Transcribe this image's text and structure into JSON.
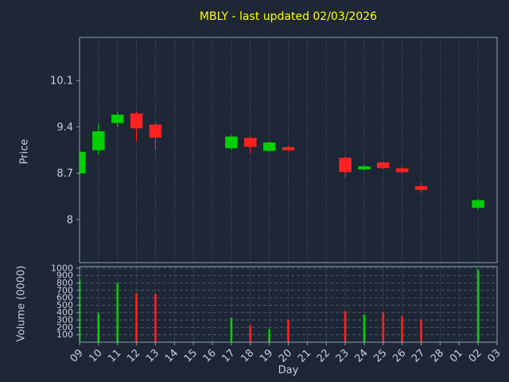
{
  "title": {
    "text": "MBLY - last updated 02/03/2026"
  },
  "axes": {
    "price_label": "Price",
    "volume_label": "Volume (0000)",
    "x_label": "Day"
  },
  "colors": {
    "background": "#1d2735",
    "up": "#00d000",
    "down": "#ff2222",
    "grid": "#8fa0b4",
    "spine": "#8fa0b4",
    "tick_text": "#c6cede",
    "title_text": "#ffff00"
  },
  "chart_data": {
    "type": "candlestick+volume",
    "title": "MBLY - last updated 02/03/2026",
    "xlabel": "Day",
    "ylabel_price": "Price",
    "ylabel_volume": "Volume (0000)",
    "x_labels": [
      "09",
      "10",
      "11",
      "12",
      "13",
      "14",
      "15",
      "16",
      "17",
      "18",
      "19",
      "20",
      "21",
      "22",
      "23",
      "24",
      "25",
      "26",
      "27",
      "28",
      "01",
      "02",
      "03"
    ],
    "price_ticks": [
      8,
      8.7,
      9.4,
      10.1
    ],
    "price_tick_labels": [
      "8",
      "8.7",
      "9.4",
      "10.1"
    ],
    "price_range": [
      7.35,
      10.75
    ],
    "volume_ticks": [
      100,
      200,
      300,
      400,
      500,
      600,
      700,
      800,
      900,
      1000
    ],
    "volume_range": [
      0,
      1020
    ],
    "grid": true,
    "candles": [
      {
        "day": "09",
        "open": 8.7,
        "high": 9.04,
        "low": 8.67,
        "close": 9.02,
        "volume": 850
      },
      {
        "day": "10",
        "open": 9.05,
        "high": 9.45,
        "low": 8.98,
        "close": 9.33,
        "volume": 390
      },
      {
        "day": "11",
        "open": 9.46,
        "high": 9.62,
        "low": 9.4,
        "close": 9.58,
        "volume": 800
      },
      {
        "day": "12",
        "open": 9.6,
        "high": 9.63,
        "low": 9.18,
        "close": 9.38,
        "volume": 660
      },
      {
        "day": "13",
        "open": 9.43,
        "high": 9.47,
        "low": 9.05,
        "close": 9.24,
        "volume": 650
      },
      {
        "day": "17",
        "open": 9.08,
        "high": 9.28,
        "low": 9.05,
        "close": 9.25,
        "volume": 330
      },
      {
        "day": "18",
        "open": 9.23,
        "high": 9.26,
        "low": 9.0,
        "close": 9.1,
        "volume": 230
      },
      {
        "day": "19",
        "open": 9.04,
        "high": 9.18,
        "low": 9.02,
        "close": 9.16,
        "volume": 180
      },
      {
        "day": "20",
        "open": 9.09,
        "high": 9.12,
        "low": 9.03,
        "close": 9.05,
        "volume": 300
      },
      {
        "day": "23",
        "open": 8.93,
        "high": 8.95,
        "low": 8.63,
        "close": 8.72,
        "volume": 420
      },
      {
        "day": "24",
        "open": 8.76,
        "high": 8.82,
        "low": 8.74,
        "close": 8.8,
        "volume": 370
      },
      {
        "day": "25",
        "open": 8.86,
        "high": 8.88,
        "low": 8.76,
        "close": 8.78,
        "volume": 400
      },
      {
        "day": "26",
        "open": 8.77,
        "high": 8.79,
        "low": 8.7,
        "close": 8.72,
        "volume": 350
      },
      {
        "day": "27",
        "open": 8.5,
        "high": 8.56,
        "low": 8.4,
        "close": 8.45,
        "volume": 300
      },
      {
        "day": "02",
        "open": 8.18,
        "high": 8.31,
        "low": 8.15,
        "close": 8.29,
        "volume": 980
      }
    ]
  }
}
